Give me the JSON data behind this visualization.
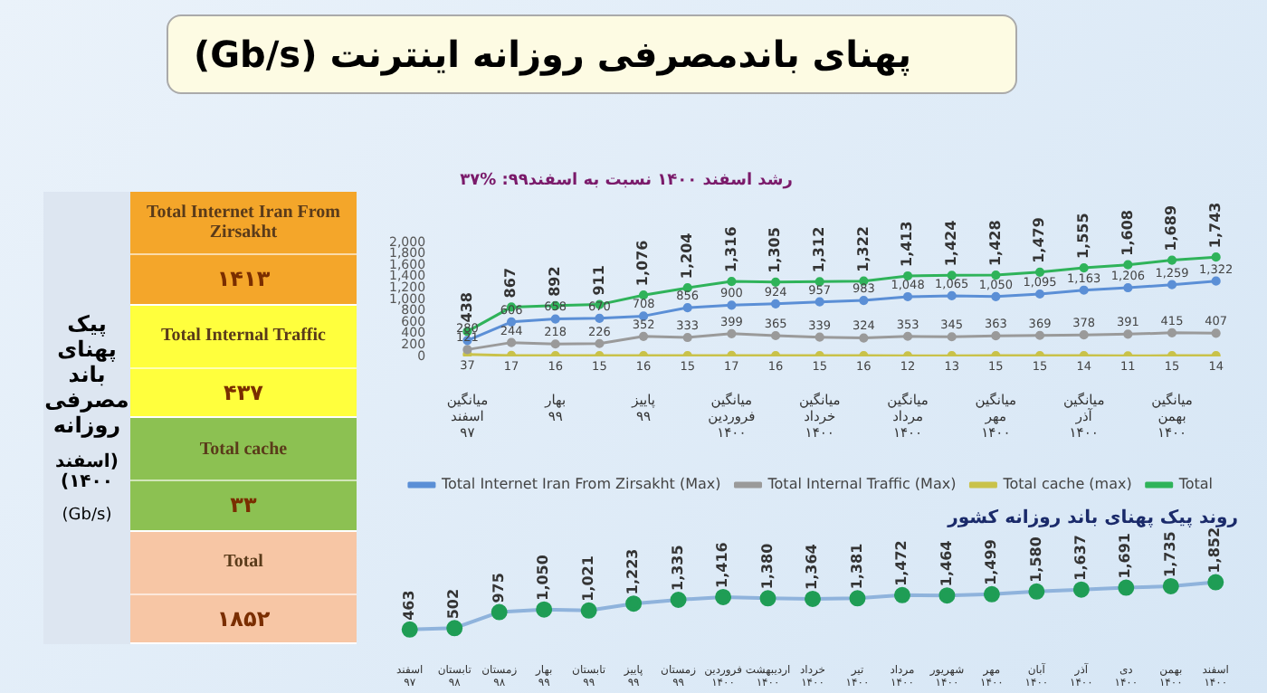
{
  "chart_data": [
    {
      "type": "line",
      "title": "پهنای باندمصرفی روزانه اینترنت (Gb/s)",
      "subtitle": "رشد اسفند ۱۴۰۰ نسبت به اسفند۹۹: %۳۷",
      "categories": [
        "میانگین اسفند ۹۷",
        null,
        "بهار ۹۹",
        null,
        "پاییز ۹۹",
        null,
        "میانگین فروردین ۱۴۰۰",
        null,
        "میانگین خرداد ۱۴۰۰",
        null,
        "میانگین مرداد ۱۴۰۰",
        null,
        "میانگین مهر ۱۴۰۰",
        null,
        "میانگین آذر ۱۴۰۰",
        null,
        "میانگین بهمن ۱۴۰۰",
        null
      ],
      "series": [
        {
          "name": "Total Internet Iran From Zirsakht (Max)",
          "color": "#5b8fd6",
          "values": [
            280,
            606,
            658,
            670,
            708,
            856,
            900,
            924,
            957,
            983,
            1048,
            1065,
            1050,
            1095,
            1163,
            1206,
            1259,
            1322
          ],
          "value_labels": [
            "280",
            "606",
            "658",
            "670",
            "708",
            "856",
            "900",
            "924",
            "957",
            "983",
            "1,048",
            "1,065",
            "1,050",
            "1,095",
            "1,163",
            "1,206",
            "1,259",
            "1,322"
          ]
        },
        {
          "name": "Total Internal Traffic (Max)",
          "color": "#9a9a9a",
          "values": [
            121,
            244,
            218,
            226,
            352,
            333,
            399,
            365,
            339,
            324,
            353,
            345,
            363,
            369,
            378,
            391,
            415,
            407
          ],
          "value_labels": [
            "121",
            "244",
            "218",
            "226",
            "352",
            "333",
            "399",
            "365",
            "339",
            "324",
            "353",
            "345",
            "363",
            "369",
            "378",
            "391",
            "415",
            "407"
          ]
        },
        {
          "name": "Total cache (max)",
          "color": "#c9c24a",
          "values": [
            37,
            17,
            16,
            15,
            16,
            15,
            17,
            16,
            15,
            16,
            12,
            13,
            15,
            15,
            14,
            11,
            15,
            14
          ],
          "value_labels": [
            "37",
            "17",
            "16",
            "15",
            "16",
            "15",
            "17",
            "16",
            "15",
            "16",
            "12",
            "13",
            "15",
            "15",
            "14",
            "11",
            "15",
            "14"
          ]
        },
        {
          "name": "Total",
          "color": "#2fb35a",
          "values": [
            438,
            867,
            892,
            911,
            1076,
            1204,
            1316,
            1305,
            1312,
            1322,
            1413,
            1424,
            1428,
            1479,
            1555,
            1608,
            1689,
            1743
          ],
          "value_labels": [
            "438",
            "867",
            "892",
            "911",
            "1,076",
            "1,204",
            "1,316",
            "1,305",
            "1,312",
            "1,322",
            "1,413",
            "1,424",
            "1,428",
            "1,479",
            "1,555",
            "1,608",
            "1,689",
            "1,743"
          ]
        }
      ],
      "ylim": [
        0,
        2000
      ],
      "yticks": [
        0,
        200,
        400,
        600,
        800,
        {
          "value": 1000,
          "label": "1,000"
        },
        {
          "value": 1200,
          "label": "1,200"
        },
        {
          "value": 1400,
          "label": "1,400"
        },
        {
          "value": 1600,
          "label": "1,600"
        },
        {
          "value": 1800,
          "label": "1,800"
        },
        {
          "value": 2000,
          "label": "2,000"
        }
      ],
      "legend": "bottom",
      "marker": "circle"
    },
    {
      "type": "line",
      "title": "روند پیک پهنای باند روزانه کشور",
      "categories": [
        "اسفند ۹۷",
        "تابستان ۹۸",
        "زمستان ۹۸",
        "بهار ۹۹",
        "تابستان ۹۹",
        "پاییز ۹۹",
        "زمستان ۹۹",
        "فروردین ۱۴۰۰",
        "اردیبهشت ۱۴۰۰",
        "خرداد ۱۴۰۰",
        "تیر ۱۴۰۰",
        "مرداد ۱۴۰۰",
        "شهریور ۱۴۰۰",
        "مهر ۱۴۰۰",
        "آبان ۱۴۰۰",
        "آذر ۱۴۰۰",
        "دی ۱۴۰۰",
        "بهمن ۱۴۰۰",
        "اسفند ۱۴۰۰"
      ],
      "series": [
        {
          "color": "#8fb3dc",
          "values": [
            463,
            502,
            975,
            1050,
            1021,
            1223,
            1335,
            1416,
            1380,
            1364,
            1381,
            1472,
            1464,
            1499,
            1580,
            1637,
            1691,
            1735,
            1852
          ],
          "value_labels": [
            "463",
            "502",
            "975",
            "1,050",
            "1,021",
            "1,223",
            "1,335",
            "1,416",
            "1,380",
            "1,364",
            "1,381",
            "1,472",
            "1,464",
            "1,499",
            "1,580",
            "1,637",
            "1,691",
            "1,735",
            "1,852"
          ]
        }
      ],
      "colors": [
        "#1f9d55",
        "#1f9d55",
        "#1f9d55",
        "#1f9d55",
        "#1f9d55",
        "#1f9d55",
        "#1f9d55",
        "#1f9d55",
        "#1f9d55",
        "#1f9d55",
        "#1f9d55",
        "#1f9d55",
        "#1f9d55",
        "#1f9d55",
        "#1f9d55",
        "#1f9d55",
        "#1f9d55",
        "#1f9d55",
        "#1f9d55"
      ],
      "marker": "circle",
      "tick_labels": "x"
    },
    {
      "type": "other",
      "title": "پیک پهنای باند مصرفی روزانه",
      "subtitle": "(اسفند ۱۴۰۰)",
      "ylabel": "(Gb/s)",
      "categories": [
        "Total Internet Iran From Zirsakht",
        "Total Internal Traffic",
        "Total cache",
        "Total"
      ],
      "value_labels": [
        "۱۴۱۳",
        "۴۳۷",
        "۳۳",
        "۱۸۵۲"
      ],
      "colors": [
        "#f4a62a",
        "#ffff3d",
        "#8cc152",
        "#f7c6a5"
      ]
    }
  ]
}
